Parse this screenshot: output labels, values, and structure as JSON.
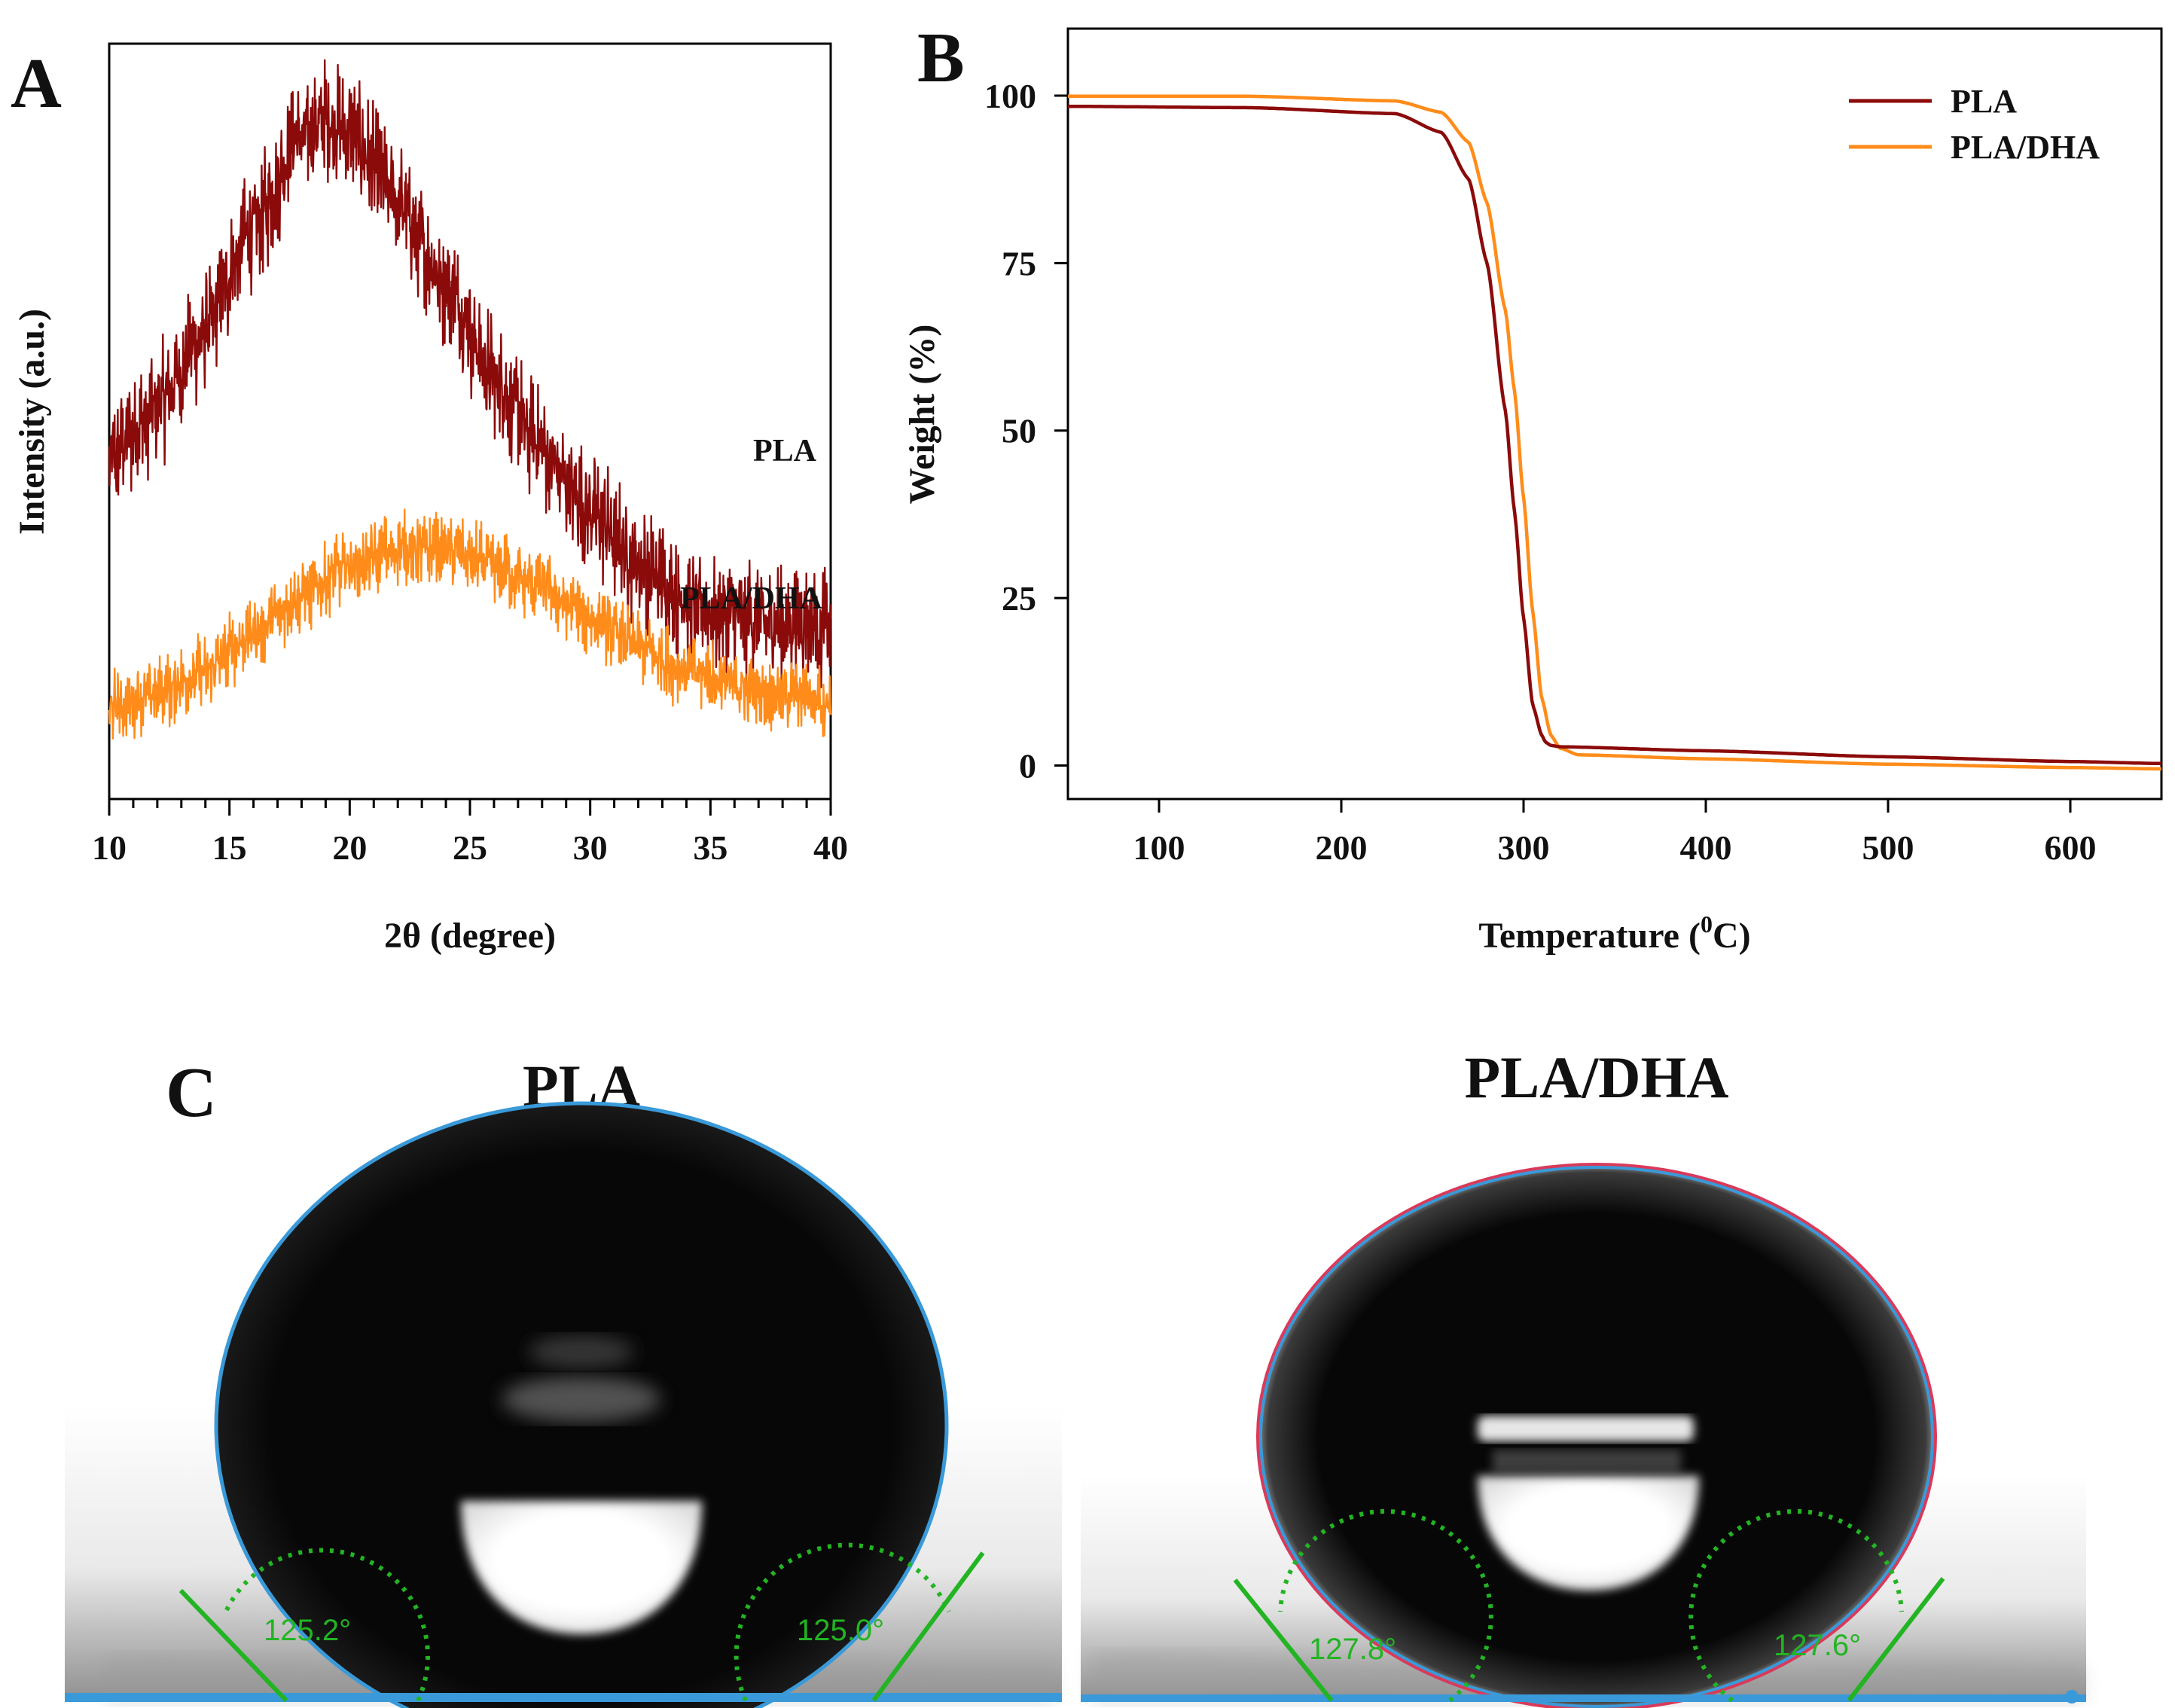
{
  "panels": {
    "A": {
      "letter": "A"
    },
    "B": {
      "letter": "B"
    },
    "C": {
      "letter": "C"
    }
  },
  "chart_data": [
    {
      "id": "A",
      "type": "line",
      "title": "",
      "xlabel": "2θ (degree)",
      "ylabel": "Intensity (a.u.)",
      "xlim": [
        10,
        40
      ],
      "xticks": [
        10,
        15,
        20,
        25,
        30,
        35,
        40
      ],
      "y_ticks_shown": false,
      "series": [
        {
          "name": "PLA",
          "color": "#8b0a0a",
          "noise": 0.09,
          "x": [
            10,
            12,
            14,
            16,
            18,
            19,
            20,
            22,
            24,
            26,
            28,
            30,
            32,
            34,
            36,
            38,
            40
          ],
          "y": [
            0.45,
            0.52,
            0.62,
            0.76,
            0.88,
            0.9,
            0.88,
            0.79,
            0.68,
            0.56,
            0.46,
            0.38,
            0.31,
            0.26,
            0.24,
            0.23,
            0.23
          ]
        },
        {
          "name": "PLA/DHA",
          "color": "#ff8c1a",
          "noise": 0.055,
          "x": [
            10,
            12,
            14,
            16,
            18,
            20,
            22,
            24,
            26,
            28,
            30,
            32,
            34,
            36,
            38,
            40
          ],
          "y": [
            0.12,
            0.14,
            0.17,
            0.22,
            0.27,
            0.31,
            0.33,
            0.33,
            0.31,
            0.28,
            0.24,
            0.2,
            0.17,
            0.15,
            0.14,
            0.13
          ]
        }
      ]
    },
    {
      "id": "B",
      "type": "line",
      "title": "",
      "xlabel": "Temperature (°C)",
      "xlabel_main": "Temperature (",
      "xlabel_sup": "0",
      "xlabel_tail": "C)",
      "ylabel": "Weight (%)",
      "xlim": [
        50,
        650
      ],
      "ylim": [
        -5,
        110
      ],
      "xticks": [
        100,
        200,
        300,
        400,
        500,
        600
      ],
      "yticks": [
        0,
        25,
        50,
        75,
        100
      ],
      "legend_position": "top-right",
      "series": [
        {
          "name": "PLA",
          "color": "#8b0a0a",
          "x": [
            50,
            150,
            230,
            255,
            270,
            280,
            290,
            295,
            300,
            305,
            310,
            312,
            315,
            320,
            400,
            500,
            600,
            650
          ],
          "y": [
            98.4,
            98.2,
            97.3,
            94.5,
            87.5,
            75,
            53,
            38,
            22,
            9,
            4.5,
            3.5,
            3.0,
            2.8,
            2.2,
            1.3,
            0.6,
            0.3
          ]
        },
        {
          "name": "PLA/DHA",
          "color": "#ff8c1a",
          "x": [
            50,
            150,
            230,
            255,
            270,
            280,
            290,
            295,
            300,
            305,
            310,
            315,
            320,
            330,
            400,
            500,
            600,
            650
          ],
          "y": [
            99.9,
            99.9,
            99.2,
            97.5,
            93,
            84,
            68,
            56,
            40,
            23,
            10,
            4.5,
            2.6,
            1.6,
            1.0,
            0.2,
            -0.3,
            -0.5
          ]
        }
      ]
    }
  ],
  "panel_c": {
    "drops": [
      {
        "title": "PLA",
        "left_angle": "125.2°",
        "right_angle": "125.0°"
      },
      {
        "title": "PLA/DHA",
        "left_angle": "127.8°",
        "right_angle": "127.6°"
      }
    ],
    "colors": {
      "outline": "#3a9ad9",
      "angle_line": "#22b422",
      "highlight": "#ffffff",
      "drop_fill": "#050505"
    }
  }
}
